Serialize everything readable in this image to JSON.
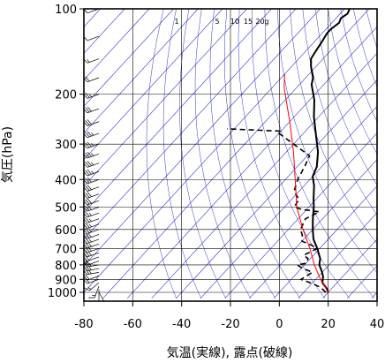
{
  "chart_data": {
    "type": "line",
    "subtype": "skew-T log-P sounding",
    "xlabel": "気温(実線), 露点(破線)",
    "ylabel": "気圧(hPa)",
    "xlim": [
      -80,
      40
    ],
    "ylim": [
      1050,
      100
    ],
    "y_scale": "log",
    "x_ticks": [
      -80,
      -60,
      -40,
      -20,
      0,
      20,
      40
    ],
    "y_ticks": [
      100,
      200,
      300,
      400,
      500,
      600,
      700,
      800,
      900,
      1000
    ],
    "grid": true,
    "mixing_ratio_labels": [
      "1",
      "5",
      "10",
      "15",
      "20g"
    ],
    "mixing_ratio_values": [
      1,
      5,
      10,
      15,
      20
    ],
    "colors": {
      "temperature": "#000000",
      "dewpoint": "#000000",
      "reference": "#ff0000",
      "isotherm": "#3333cc",
      "grid": "#000000",
      "wind": "#000000"
    },
    "series": [
      {
        "key": "temperature",
        "style": "solid",
        "points": [
          {
            "t": 20,
            "p": 1000
          },
          {
            "t": 18,
            "p": 970
          },
          {
            "t": 14,
            "p": 925
          },
          {
            "t": 12,
            "p": 880
          },
          {
            "t": 10,
            "p": 850
          },
          {
            "t": 6,
            "p": 800
          },
          {
            "t": 4,
            "p": 760
          },
          {
            "t": -1,
            "p": 700
          },
          {
            "t": -6,
            "p": 650
          },
          {
            "t": -10,
            "p": 600
          },
          {
            "t": -14,
            "p": 550
          },
          {
            "t": -18,
            "p": 500
          },
          {
            "t": -21,
            "p": 470
          },
          {
            "t": -26,
            "p": 420
          },
          {
            "t": -30,
            "p": 390
          },
          {
            "t": -32,
            "p": 360
          },
          {
            "t": -37,
            "p": 320
          },
          {
            "t": -44,
            "p": 280
          },
          {
            "t": -52,
            "p": 240
          },
          {
            "t": -58,
            "p": 210
          },
          {
            "t": -65,
            "p": 185
          },
          {
            "t": -67,
            "p": 175
          },
          {
            "t": -72,
            "p": 160
          },
          {
            "t": -75,
            "p": 150
          },
          {
            "t": -76,
            "p": 140
          },
          {
            "t": -77,
            "p": 130
          },
          {
            "t": -78,
            "p": 122
          },
          {
            "t": -78,
            "p": 118
          },
          {
            "t": -77,
            "p": 112
          },
          {
            "t": -78,
            "p": 108
          },
          {
            "t": -77,
            "p": 104
          },
          {
            "t": -78,
            "p": 100
          }
        ]
      },
      {
        "key": "dewpoint",
        "style": "dashed",
        "points": [
          {
            "t": 19,
            "p": 1000
          },
          {
            "t": 15,
            "p": 960
          },
          {
            "t": 9,
            "p": 925
          },
          {
            "t": 4,
            "p": 900
          },
          {
            "t": 6,
            "p": 850
          },
          {
            "t": 0,
            "p": 820
          },
          {
            "t": -3,
            "p": 800
          },
          {
            "t": 0,
            "p": 790
          },
          {
            "t": -1,
            "p": 760
          },
          {
            "t": -4,
            "p": 740
          },
          {
            "t": -1,
            "p": 700
          },
          {
            "t": -5,
            "p": 680
          },
          {
            "t": -10,
            "p": 660
          },
          {
            "t": -12,
            "p": 630
          },
          {
            "t": -15,
            "p": 600
          },
          {
            "t": -17,
            "p": 550
          },
          {
            "t": -14,
            "p": 520
          },
          {
            "t": -22,
            "p": 510
          },
          {
            "t": -26,
            "p": 500
          },
          {
            "t": -27,
            "p": 470
          },
          {
            "t": -32,
            "p": 440
          },
          {
            "t": -35,
            "p": 400
          },
          {
            "t": -37,
            "p": 360
          },
          {
            "t": -39,
            "p": 330
          },
          {
            "t": -60,
            "p": 275
          },
          {
            "t": -60,
            "p": 270
          },
          {
            "t": -83,
            "p": 265
          }
        ]
      },
      {
        "key": "reference",
        "style": "solid",
        "points": [
          {
            "t": 20,
            "p": 1000
          },
          {
            "t": 12,
            "p": 900
          },
          {
            "t": 4,
            "p": 800
          },
          {
            "t": -4,
            "p": 700
          },
          {
            "t": -14,
            "p": 600
          },
          {
            "t": -25,
            "p": 500
          },
          {
            "t": -36,
            "p": 400
          },
          {
            "t": -47,
            "p": 320
          },
          {
            "t": -60,
            "p": 250
          },
          {
            "t": -75,
            "p": 190
          },
          {
            "t": -80,
            "p": 170
          }
        ]
      }
    ],
    "wind_barbs": [
      {
        "p": 1000,
        "dir": 150,
        "kt": 10
      },
      {
        "p": 975,
        "dir": 180,
        "kt": 10
      },
      {
        "p": 950,
        "dir": 200,
        "kt": 15
      },
      {
        "p": 925,
        "dir": 230,
        "kt": 15
      },
      {
        "p": 900,
        "dir": 250,
        "kt": 20
      },
      {
        "p": 875,
        "dir": 250,
        "kt": 20
      },
      {
        "p": 850,
        "dir": 260,
        "kt": 25
      },
      {
        "p": 825,
        "dir": 260,
        "kt": 25
      },
      {
        "p": 800,
        "dir": 260,
        "kt": 25
      },
      {
        "p": 775,
        "dir": 250,
        "kt": 20
      },
      {
        "p": 750,
        "dir": 250,
        "kt": 20
      },
      {
        "p": 725,
        "dir": 250,
        "kt": 25
      },
      {
        "p": 700,
        "dir": 250,
        "kt": 25
      },
      {
        "p": 675,
        "dir": 250,
        "kt": 25
      },
      {
        "p": 650,
        "dir": 250,
        "kt": 25
      },
      {
        "p": 625,
        "dir": 250,
        "kt": 25
      },
      {
        "p": 600,
        "dir": 250,
        "kt": 25
      },
      {
        "p": 575,
        "dir": 250,
        "kt": 25
      },
      {
        "p": 550,
        "dir": 250,
        "kt": 25
      },
      {
        "p": 525,
        "dir": 250,
        "kt": 25
      },
      {
        "p": 500,
        "dir": 250,
        "kt": 30
      },
      {
        "p": 475,
        "dir": 250,
        "kt": 30
      },
      {
        "p": 450,
        "dir": 250,
        "kt": 30
      },
      {
        "p": 425,
        "dir": 250,
        "kt": 30
      },
      {
        "p": 400,
        "dir": 250,
        "kt": 30
      },
      {
        "p": 375,
        "dir": 250,
        "kt": 35
      },
      {
        "p": 350,
        "dir": 250,
        "kt": 35
      },
      {
        "p": 325,
        "dir": 250,
        "kt": 35
      },
      {
        "p": 300,
        "dir": 250,
        "kt": 35
      },
      {
        "p": 275,
        "dir": 250,
        "kt": 35
      },
      {
        "p": 250,
        "dir": 250,
        "kt": 30
      },
      {
        "p": 225,
        "dir": 250,
        "kt": 30
      },
      {
        "p": 200,
        "dir": 250,
        "kt": 25
      },
      {
        "p": 175,
        "dir": 250,
        "kt": 20
      },
      {
        "p": 150,
        "dir": 250,
        "kt": 15
      },
      {
        "p": 125,
        "dir": 250,
        "kt": 10
      },
      {
        "p": 100,
        "dir": 250,
        "kt": 10
      }
    ]
  }
}
